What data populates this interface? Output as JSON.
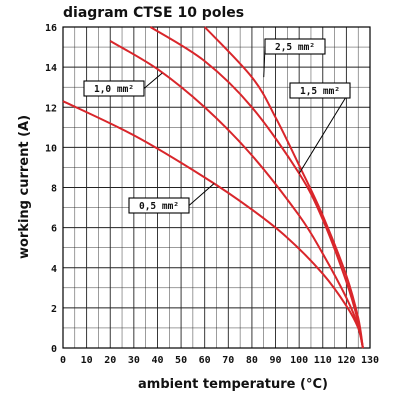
{
  "chart_data": {
    "type": "line",
    "title": "diagram CTSE 10 poles",
    "xlabel": "ambient temperature (°C)",
    "ylabel": "working current (A)",
    "xlim": [
      0,
      130
    ],
    "ylim": [
      0,
      16
    ],
    "x_ticks": [
      "0",
      "10",
      "20",
      "30",
      "40",
      "50",
      "60",
      "70",
      "80",
      "90",
      "100",
      "110",
      "120",
      "130"
    ],
    "y_ticks": [
      "0",
      "2",
      "4",
      "6",
      "8",
      "10",
      "12",
      "14",
      "16"
    ],
    "grid": true,
    "line_color": "#d9262b",
    "series": [
      {
        "name": "0,5 mm²",
        "x": [
          0,
          30,
          60,
          80,
          95,
          110,
          120,
          125,
          127
        ],
        "y": [
          12.3,
          10.6,
          8.5,
          6.9,
          5.5,
          3.7,
          2.1,
          1.0,
          0
        ]
      },
      {
        "name": "1,0 mm²",
        "x": [
          20,
          40,
          60,
          80,
          100,
          110,
          120,
          125,
          127
        ],
        "y": [
          15.3,
          13.9,
          12.0,
          9.6,
          6.6,
          4.7,
          2.5,
          1.1,
          0
        ]
      },
      {
        "name": "1,5 mm²",
        "x": [
          37,
          60,
          80,
          100,
          110,
          120,
          125,
          127
        ],
        "y": [
          16,
          14.3,
          12.0,
          8.7,
          6.4,
          3.3,
          1.3,
          0
        ]
      },
      {
        "name": "2,5 mm²",
        "x": [
          60,
          80,
          90,
          100,
          110,
          120,
          125,
          127
        ],
        "y": [
          16,
          13.5,
          11.5,
          9.1,
          6.6,
          3.6,
          1.5,
          0
        ]
      }
    ],
    "callouts": [
      {
        "series": "2,5 mm²",
        "text": "2,5 mm²"
      },
      {
        "series": "1,5 mm²",
        "text": "1,5 mm²"
      },
      {
        "series": "1,0 mm²",
        "text": "1,0 mm²"
      },
      {
        "series": "0,5 mm²",
        "text": "0,5 mm²"
      }
    ]
  }
}
